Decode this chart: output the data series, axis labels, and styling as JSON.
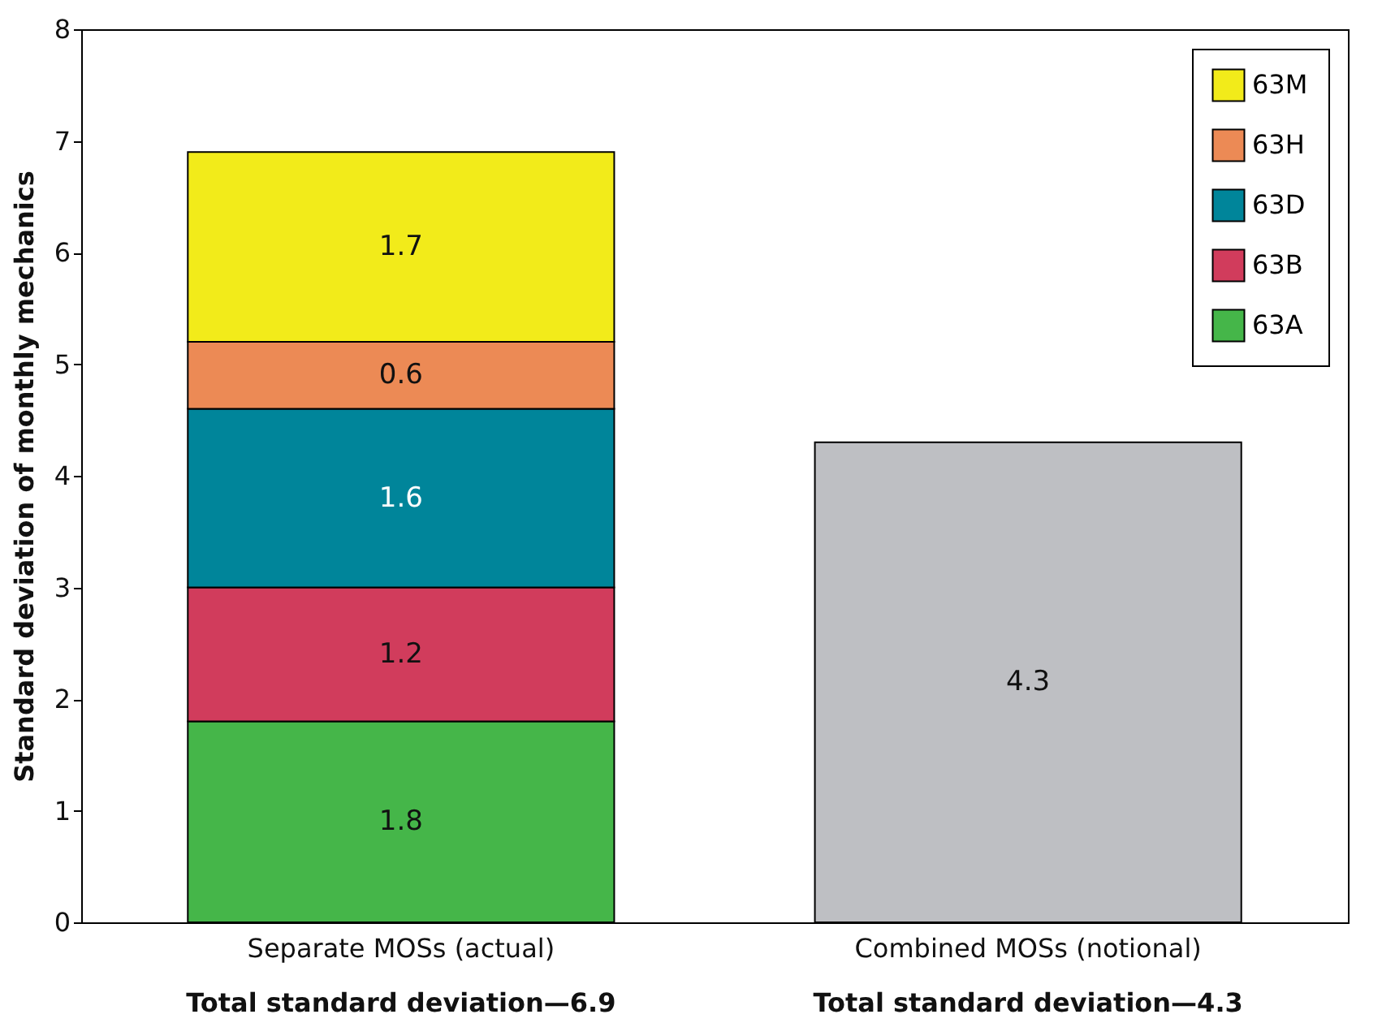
{
  "chart_data": {
    "type": "bar",
    "stacked": true,
    "categories": [
      "Separate MOSs (actual)",
      "Combined MOSs (notional)"
    ],
    "ylabel": "Standard deviation of monthly mechanics",
    "series": [
      {
        "name": "63A",
        "color": "#45b649",
        "values": [
          1.8,
          null
        ]
      },
      {
        "name": "63B",
        "color": "#d13c5c",
        "values": [
          1.2,
          null
        ]
      },
      {
        "name": "63D",
        "color": "#00859a",
        "values": [
          1.6,
          null
        ]
      },
      {
        "name": "63H",
        "color": "#ec8a55",
        "values": [
          0.6,
          null
        ]
      },
      {
        "name": "63M",
        "color": "#f2eb1a",
        "values": [
          1.7,
          null
        ]
      },
      {
        "color": "#bebfc3",
        "values": [
          null,
          4.3
        ]
      }
    ],
    "totals": [
      "Total standard deviation—6.9",
      "Total standard deviation—4.3"
    ],
    "ylim": [
      0,
      8
    ],
    "yticks": [
      0,
      1,
      2,
      3,
      4,
      5,
      6,
      7,
      8
    ],
    "data_labels": true,
    "grid": false,
    "legend": "top right"
  }
}
